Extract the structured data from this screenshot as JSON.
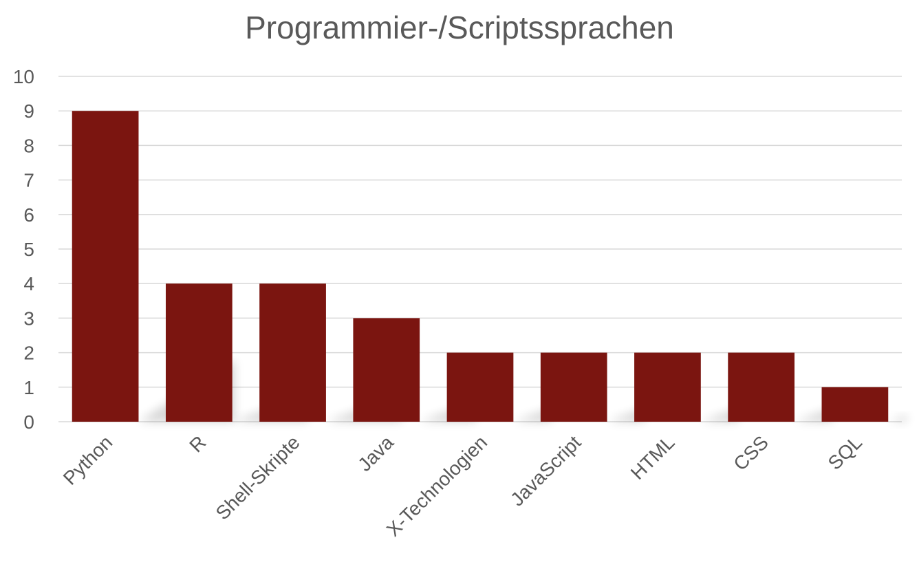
{
  "chart_data": {
    "type": "bar",
    "title": "Programmier-/Scriptssprachen",
    "xlabel": "",
    "ylabel": "",
    "categories": [
      "Python",
      "R",
      "Shell-Skripte",
      "Java",
      "X-Technologien",
      "JavaScript",
      "HTML",
      "CSS",
      "SQL"
    ],
    "values": [
      9,
      4,
      4,
      3,
      2,
      2,
      2,
      2,
      1
    ],
    "ylim": [
      0,
      10
    ],
    "yticks": [
      "0",
      "1",
      "2",
      "3",
      "4",
      "5",
      "6",
      "7",
      "8",
      "9",
      "10"
    ],
    "grid": true,
    "legend": "none",
    "bar_color": "#7b1510"
  }
}
